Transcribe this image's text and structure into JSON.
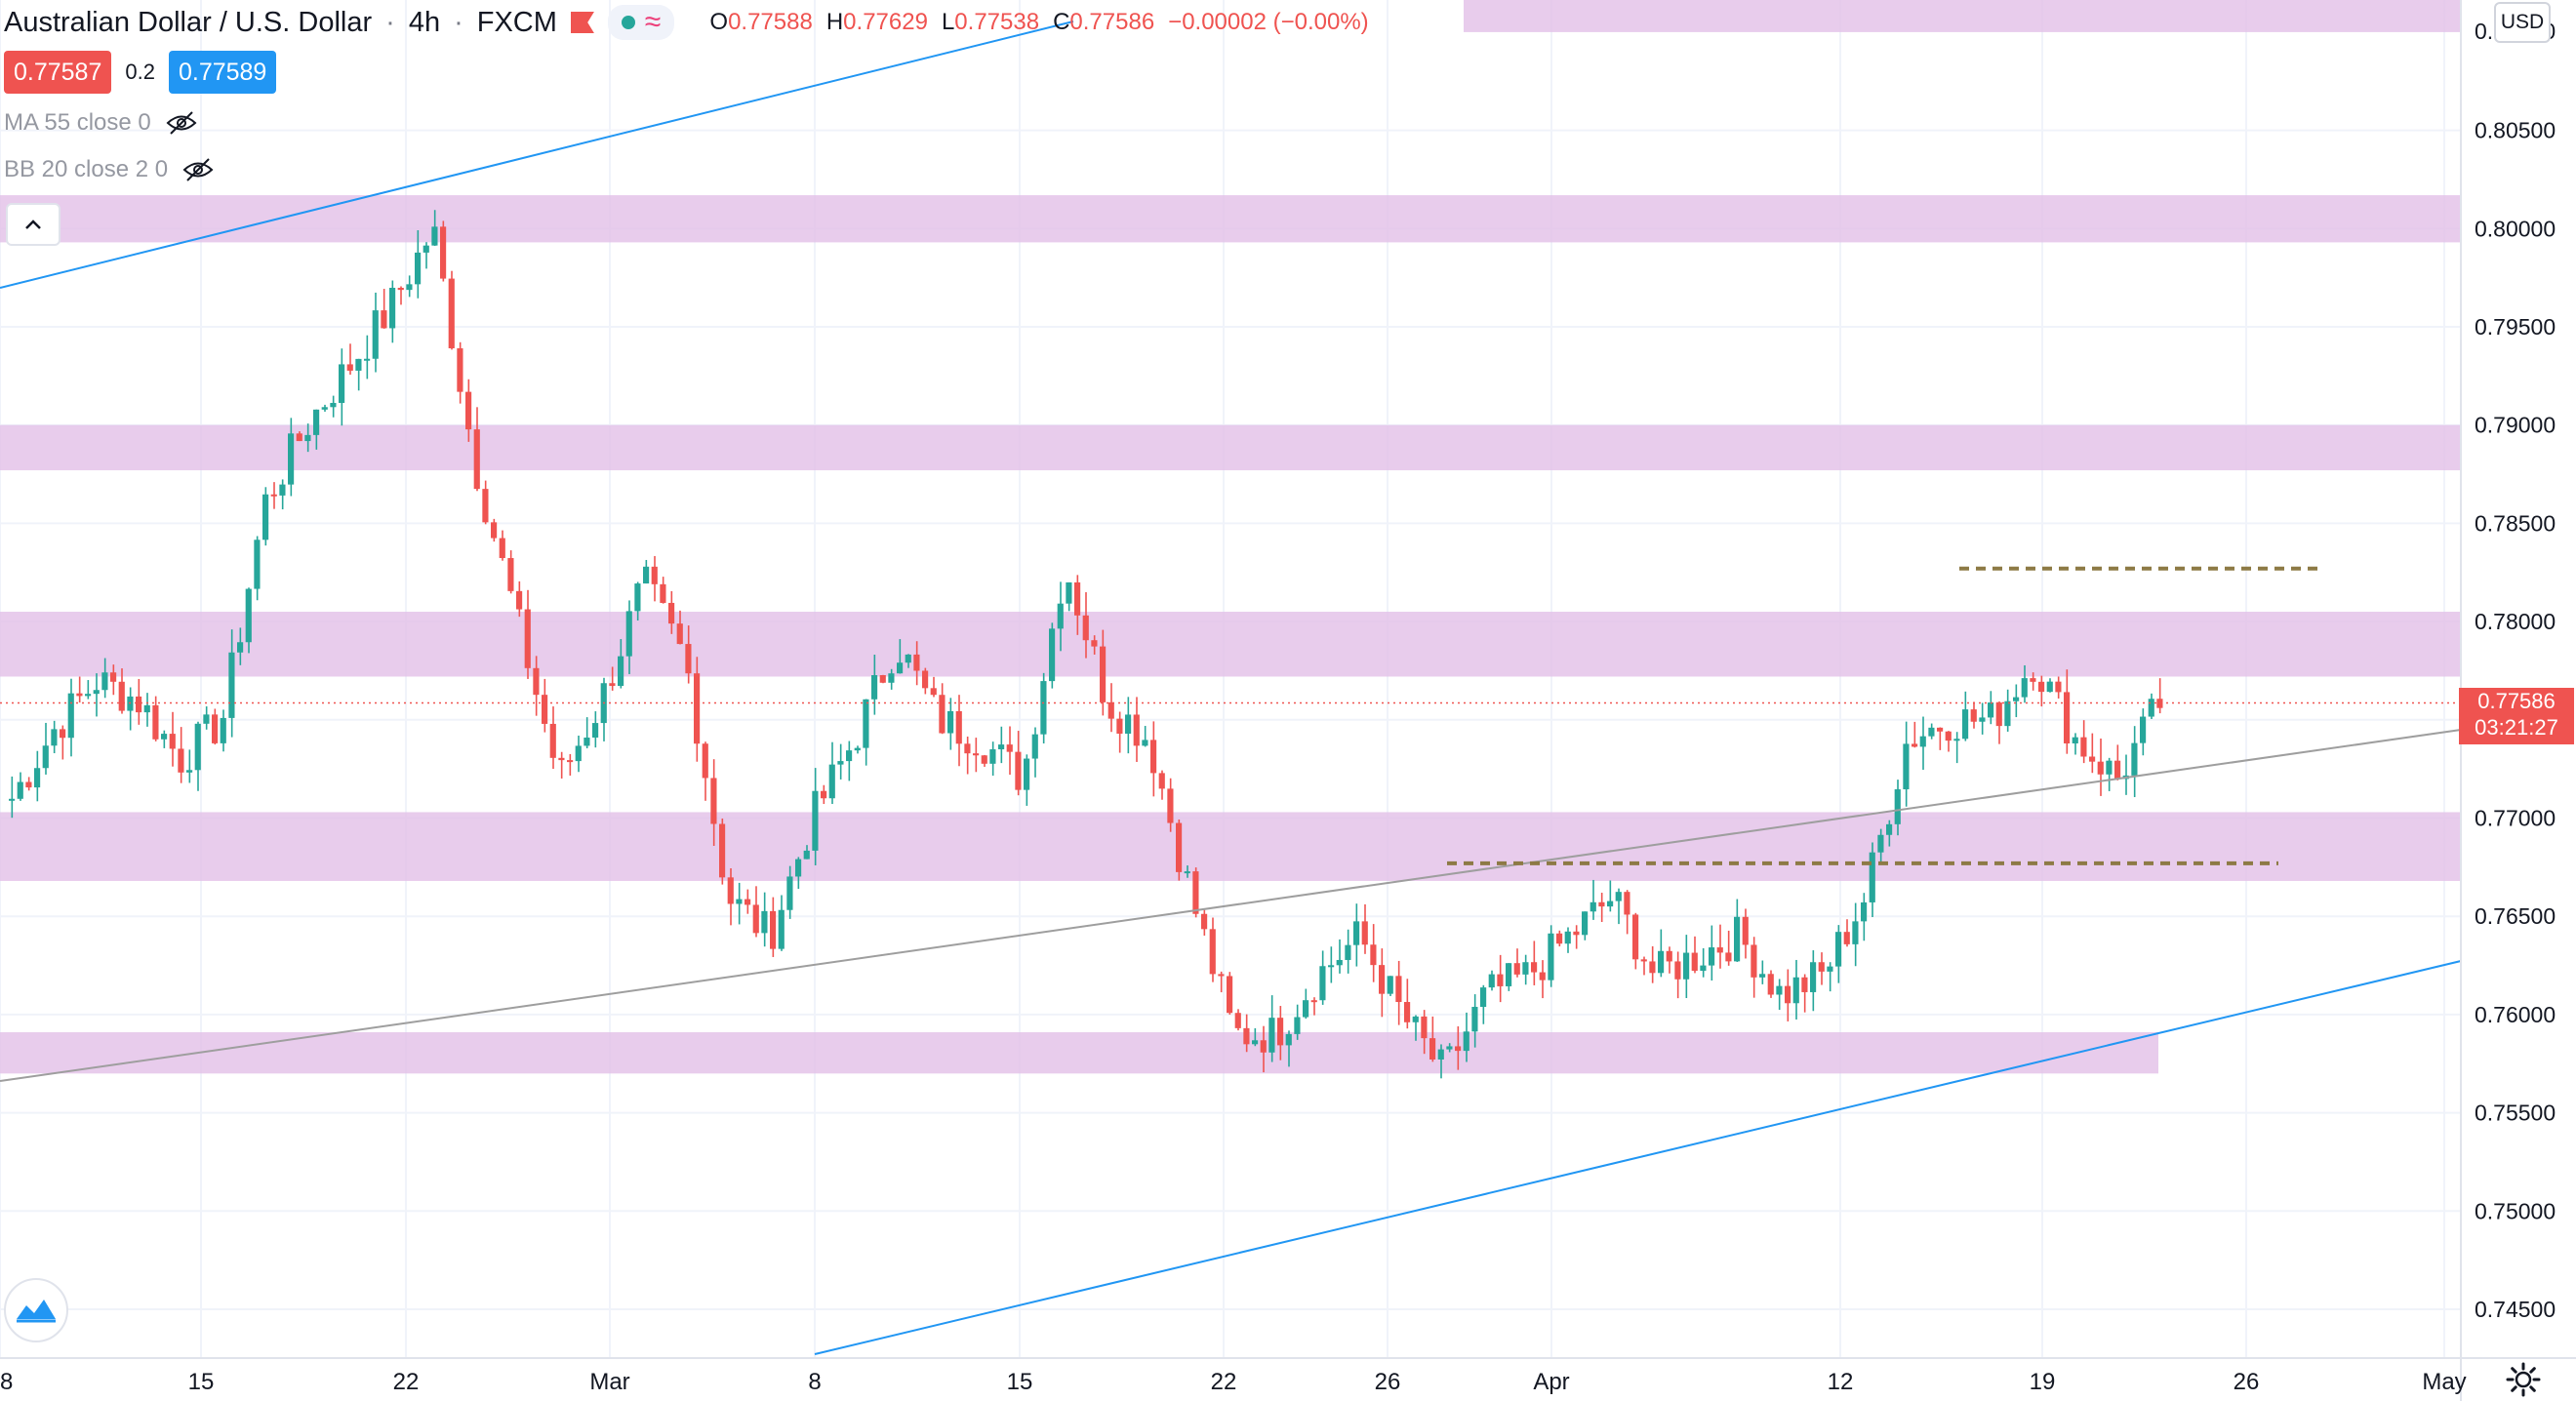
{
  "header": {
    "symbol_title": "Australian Dollar / U.S. Dollar",
    "timeframe": "4h",
    "exchange": "FXCM",
    "separator": "·",
    "flag_icon": "flag-icon",
    "status_icons": [
      "market-open-dot-icon",
      "approx-icon"
    ],
    "ohlc": [
      {
        "key": "O",
        "value": "0.77588"
      },
      {
        "key": "H",
        "value": "0.77629"
      },
      {
        "key": "L",
        "value": "0.77538"
      },
      {
        "key": "C",
        "value": "0.77586"
      }
    ],
    "change": "−0.00002 (−0.00%)"
  },
  "prices": {
    "sell": "0.77587",
    "spread": "0.2",
    "buy": "0.77589"
  },
  "indicators": [
    {
      "label": "MA 55 close 0",
      "icon": "eye-crossed-icon"
    },
    {
      "label": "BB 20 close 2 0",
      "icon": "eye-crossed-icon"
    }
  ],
  "currency_badge": "USD",
  "last_price": {
    "value": "0.77586",
    "countdown": "03:21:27"
  },
  "colors": {
    "up": "#26a69a",
    "down": "#ef5350",
    "zone": "#e1bee7",
    "channel": "#2196f3",
    "trend": "#9e9e9e",
    "dashed": "#8d7a45"
  },
  "chart_data": {
    "type": "candlestick",
    "title": "",
    "xlabel": "",
    "ylabel": "",
    "ylim": [
      0.742,
      0.8185
    ],
    "y_ticks": [
      "0.74500",
      "0.75000",
      "0.75500",
      "0.76000",
      "0.76500",
      "0.77000",
      "0.77500",
      "0.78000",
      "0.78500",
      "0.79000",
      "0.79500",
      "0.80000",
      "0.80500"
    ],
    "y_tick_top_partial": "0.81000",
    "x_ticks": [
      "8",
      "15",
      "22",
      "Mar",
      "8",
      "15",
      "22",
      "26",
      "Apr",
      "12",
      "19",
      "26",
      "May"
    ],
    "candles_approx": [
      {
        "date": "Feb 09",
        "close": 0.771
      },
      {
        "date": "Feb 12",
        "close": 0.7745
      },
      {
        "date": "Feb 15",
        "close": 0.777
      },
      {
        "date": "Feb 17",
        "close": 0.776
      },
      {
        "date": "Feb 18",
        "close": 0.773
      },
      {
        "date": "Feb 19",
        "close": 0.775
      },
      {
        "date": "Feb 22",
        "close": 0.786
      },
      {
        "date": "Feb 23",
        "close": 0.79
      },
      {
        "date": "Feb 24",
        "close": 0.793
      },
      {
        "date": "Feb 25",
        "close": 0.796
      },
      {
        "date": "Feb 26",
        "close": 0.8
      },
      {
        "date": "Feb 27",
        "close": 0.788
      },
      {
        "date": "Mar 01",
        "close": 0.78
      },
      {
        "date": "Mar 02",
        "close": 0.772
      },
      {
        "date": "Mar 03",
        "close": 0.776
      },
      {
        "date": "Mar 04",
        "close": 0.782
      },
      {
        "date": "Mar 05",
        "close": 0.778
      },
      {
        "date": "Mar 08",
        "close": 0.766
      },
      {
        "date": "Mar 09",
        "close": 0.764
      },
      {
        "date": "Mar 10",
        "close": 0.77
      },
      {
        "date": "Mar 11",
        "close": 0.774
      },
      {
        "date": "Mar 12",
        "close": 0.779
      },
      {
        "date": "Mar 15",
        "close": 0.775
      },
      {
        "date": "Mar 16",
        "close": 0.774
      },
      {
        "date": "Mar 17",
        "close": 0.772
      },
      {
        "date": "Mar 18",
        "close": 0.783
      },
      {
        "date": "Mar 19",
        "close": 0.776
      },
      {
        "date": "Mar 22",
        "close": 0.774
      },
      {
        "date": "Mar 23",
        "close": 0.766
      },
      {
        "date": "Mar 24",
        "close": 0.759
      },
      {
        "date": "Mar 25",
        "close": 0.759
      },
      {
        "date": "Mar 26",
        "close": 0.762
      },
      {
        "date": "Mar 29",
        "close": 0.764
      },
      {
        "date": "Mar 30",
        "close": 0.76
      },
      {
        "date": "Mar 31",
        "close": 0.757
      },
      {
        "date": "Apr 01",
        "close": 0.761
      },
      {
        "date": "Apr 02",
        "close": 0.762
      },
      {
        "date": "Apr 05",
        "close": 0.764
      },
      {
        "date": "Apr 06",
        "close": 0.766
      },
      {
        "date": "Apr 07",
        "close": 0.762
      },
      {
        "date": "Apr 08",
        "close": 0.763
      },
      {
        "date": "Apr 09",
        "close": 0.764
      },
      {
        "date": "Apr 12",
        "close": 0.761
      },
      {
        "date": "Apr 13",
        "close": 0.762
      },
      {
        "date": "Apr 14",
        "close": 0.766
      },
      {
        "date": "Apr 15",
        "close": 0.774
      },
      {
        "date": "Apr 16",
        "close": 0.775
      },
      {
        "date": "Apr 19",
        "close": 0.775
      },
      {
        "date": "Apr 20",
        "close": 0.778
      },
      {
        "date": "Apr 21",
        "close": 0.774
      },
      {
        "date": "Apr 22",
        "close": 0.772
      },
      {
        "date": "Apr 23",
        "close": 0.77586
      }
    ],
    "zones": [
      [
        0.81,
        0.8117
      ],
      [
        0.7993,
        0.8017
      ],
      [
        0.7877,
        0.79
      ],
      [
        0.7772,
        0.7805
      ],
      [
        0.7668,
        0.7703
      ],
      [
        0.757,
        0.7591
      ]
    ],
    "dashed_levels": [
      0.7827,
      0.7677
    ],
    "grid": true,
    "legend": "none"
  }
}
